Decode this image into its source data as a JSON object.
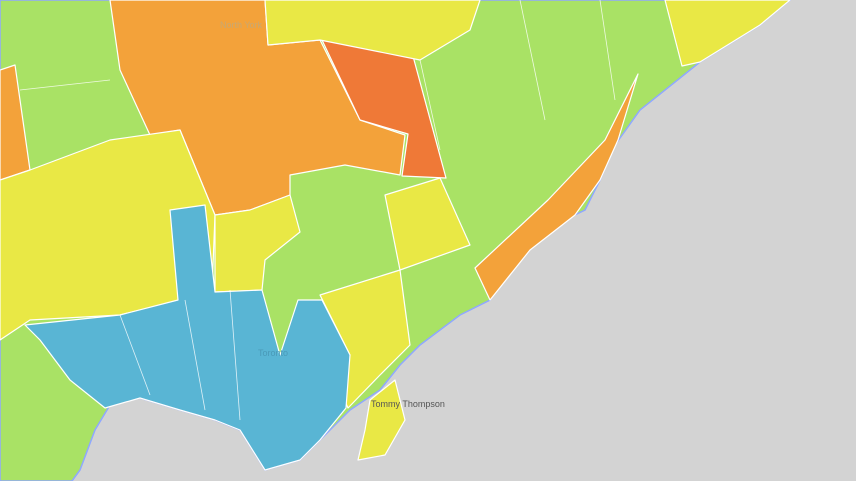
{
  "labels": {
    "north_york": "North York",
    "toronto": "Toronto",
    "park": "Tommy Thompson"
  }
}
